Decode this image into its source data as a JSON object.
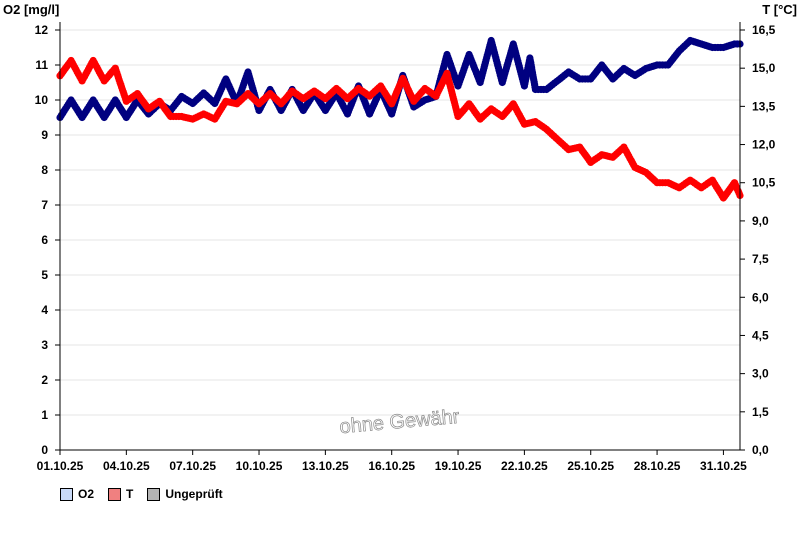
{
  "chart_data": {
    "type": "line",
    "left_axis": {
      "label": "O2 [mg/l]",
      "ylim": [
        0,
        12
      ],
      "ticks": [
        "0",
        "1",
        "2",
        "3",
        "4",
        "5",
        "6",
        "7",
        "8",
        "9",
        "10",
        "11",
        "12"
      ]
    },
    "right_axis": {
      "label": "T [°C]",
      "ylim": [
        0,
        16.5
      ],
      "ticks": [
        "0,0",
        "1,5",
        "3,0",
        "4,5",
        "6,0",
        "7,5",
        "9,0",
        "10,5",
        "12,0",
        "13,5",
        "15,0",
        "16,5"
      ]
    },
    "x_range": [
      "2025-10-01",
      "2025-10-31T18:00"
    ],
    "x_ticks": [
      "01.10.25",
      "04.10.25",
      "07.10.25",
      "10.10.25",
      "13.10.25",
      "16.10.25",
      "19.10.25",
      "22.10.25",
      "25.10.25",
      "28.10.25",
      "31.10.25"
    ],
    "grid": "horizontal",
    "watermark": "ohne Gewähr",
    "series": [
      {
        "name": "O2",
        "axis": "left",
        "color": "#000080",
        "legend_fill": "#c9daf8",
        "points": [
          [
            "2025-10-01",
            9.5
          ],
          [
            "2025-10-01T12:00",
            10.0
          ],
          [
            "2025-10-02",
            9.5
          ],
          [
            "2025-10-02T12:00",
            10.0
          ],
          [
            "2025-10-03",
            9.5
          ],
          [
            "2025-10-03T12:00",
            10.0
          ],
          [
            "2025-10-04",
            9.5
          ],
          [
            "2025-10-04T12:00",
            10.0
          ],
          [
            "2025-10-05",
            9.6
          ],
          [
            "2025-10-05T12:00",
            9.9
          ],
          [
            "2025-10-06",
            9.7
          ],
          [
            "2025-10-06T12:00",
            10.1
          ],
          [
            "2025-10-07",
            9.9
          ],
          [
            "2025-10-07T12:00",
            10.2
          ],
          [
            "2025-10-08",
            9.9
          ],
          [
            "2025-10-08T12:00",
            10.6
          ],
          [
            "2025-10-09",
            9.9
          ],
          [
            "2025-10-09T12:00",
            10.8
          ],
          [
            "2025-10-10",
            9.7
          ],
          [
            "2025-10-10T12:00",
            10.3
          ],
          [
            "2025-10-11",
            9.7
          ],
          [
            "2025-10-11T12:00",
            10.3
          ],
          [
            "2025-10-12",
            9.7
          ],
          [
            "2025-10-12T12:00",
            10.2
          ],
          [
            "2025-10-13",
            9.7
          ],
          [
            "2025-10-13T12:00",
            10.2
          ],
          [
            "2025-10-14",
            9.6
          ],
          [
            "2025-10-14T12:00",
            10.4
          ],
          [
            "2025-10-15",
            9.6
          ],
          [
            "2025-10-15T12:00",
            10.3
          ],
          [
            "2025-10-16",
            9.6
          ],
          [
            "2025-10-16T12:00",
            10.7
          ],
          [
            "2025-10-17",
            9.8
          ],
          [
            "2025-10-17T12:00",
            10.0
          ],
          [
            "2025-10-18",
            10.1
          ],
          [
            "2025-10-18T12:00",
            11.3
          ],
          [
            "2025-10-19",
            10.4
          ],
          [
            "2025-10-19T12:00",
            11.3
          ],
          [
            "2025-10-20",
            10.5
          ],
          [
            "2025-10-20T12:00",
            11.7
          ],
          [
            "2025-10-21",
            10.5
          ],
          [
            "2025-10-21T12:00",
            11.6
          ],
          [
            "2025-10-22",
            10.4
          ],
          [
            "2025-10-22T06:00",
            11.2
          ],
          [
            "2025-10-22T12:00",
            10.3
          ],
          [
            "2025-10-23",
            10.3
          ],
          [
            "2025-10-24",
            10.8
          ],
          [
            "2025-10-24T12:00",
            10.6
          ],
          [
            "2025-10-25",
            10.6
          ],
          [
            "2025-10-25T12:00",
            11.0
          ],
          [
            "2025-10-26",
            10.6
          ],
          [
            "2025-10-26T12:00",
            10.9
          ],
          [
            "2025-10-27",
            10.7
          ],
          [
            "2025-10-27T12:00",
            10.9
          ],
          [
            "2025-10-28",
            11.0
          ],
          [
            "2025-10-28T12:00",
            11.0
          ],
          [
            "2025-10-29",
            11.4
          ],
          [
            "2025-10-29T12:00",
            11.7
          ],
          [
            "2025-10-30",
            11.6
          ],
          [
            "2025-10-30T12:00",
            11.5
          ],
          [
            "2025-10-31",
            11.5
          ],
          [
            "2025-10-31T12:00",
            11.6
          ],
          [
            "2025-10-31T18:00",
            11.6
          ]
        ]
      },
      {
        "name": "T",
        "axis": "right",
        "color": "#ff0000",
        "legend_fill": "#f08080",
        "points": [
          [
            "2025-10-01",
            14.7
          ],
          [
            "2025-10-01T12:00",
            15.3
          ],
          [
            "2025-10-02",
            14.5
          ],
          [
            "2025-10-02T12:00",
            15.3
          ],
          [
            "2025-10-03",
            14.5
          ],
          [
            "2025-10-03T12:00",
            15.0
          ],
          [
            "2025-10-04",
            13.7
          ],
          [
            "2025-10-04T12:00",
            14.0
          ],
          [
            "2025-10-05",
            13.4
          ],
          [
            "2025-10-05T12:00",
            13.7
          ],
          [
            "2025-10-06",
            13.1
          ],
          [
            "2025-10-06T12:00",
            13.1
          ],
          [
            "2025-10-07",
            13.0
          ],
          [
            "2025-10-07T12:00",
            13.2
          ],
          [
            "2025-10-08",
            13.0
          ],
          [
            "2025-10-08T12:00",
            13.7
          ],
          [
            "2025-10-09",
            13.6
          ],
          [
            "2025-10-09T12:00",
            14.0
          ],
          [
            "2025-10-10",
            13.6
          ],
          [
            "2025-10-10T12:00",
            14.0
          ],
          [
            "2025-10-11",
            13.6
          ],
          [
            "2025-10-11T12:00",
            14.1
          ],
          [
            "2025-10-12",
            13.8
          ],
          [
            "2025-10-12T12:00",
            14.1
          ],
          [
            "2025-10-13",
            13.8
          ],
          [
            "2025-10-13T12:00",
            14.2
          ],
          [
            "2025-10-14",
            13.8
          ],
          [
            "2025-10-14T12:00",
            14.2
          ],
          [
            "2025-10-15",
            13.9
          ],
          [
            "2025-10-15T12:00",
            14.3
          ],
          [
            "2025-10-16",
            13.6
          ],
          [
            "2025-10-16T12:00",
            14.6
          ],
          [
            "2025-10-17",
            13.7
          ],
          [
            "2025-10-17T12:00",
            14.2
          ],
          [
            "2025-10-18",
            13.9
          ],
          [
            "2025-10-18T12:00",
            14.8
          ],
          [
            "2025-10-19",
            13.1
          ],
          [
            "2025-10-19T12:00",
            13.6
          ],
          [
            "2025-10-20",
            13.0
          ],
          [
            "2025-10-20T12:00",
            13.4
          ],
          [
            "2025-10-21",
            13.1
          ],
          [
            "2025-10-21T12:00",
            13.6
          ],
          [
            "2025-10-22",
            12.8
          ],
          [
            "2025-10-22T12:00",
            12.9
          ],
          [
            "2025-10-23",
            12.6
          ],
          [
            "2025-10-24",
            11.8
          ],
          [
            "2025-10-24T12:00",
            11.9
          ],
          [
            "2025-10-25",
            11.3
          ],
          [
            "2025-10-25T12:00",
            11.6
          ],
          [
            "2025-10-26",
            11.5
          ],
          [
            "2025-10-26T12:00",
            11.9
          ],
          [
            "2025-10-27",
            11.1
          ],
          [
            "2025-10-27T12:00",
            10.9
          ],
          [
            "2025-10-28",
            10.5
          ],
          [
            "2025-10-28T12:00",
            10.5
          ],
          [
            "2025-10-29",
            10.3
          ],
          [
            "2025-10-29T12:00",
            10.6
          ],
          [
            "2025-10-30",
            10.3
          ],
          [
            "2025-10-30T12:00",
            10.6
          ],
          [
            "2025-10-31",
            9.9
          ],
          [
            "2025-10-31T12:00",
            10.5
          ],
          [
            "2025-10-31T18:00",
            10.0
          ]
        ]
      }
    ]
  },
  "legend": {
    "items": [
      {
        "label": "O2",
        "color": "#c9daf8"
      },
      {
        "label": "T",
        "color": "#f08080"
      },
      {
        "label": "Ungeprüft",
        "color": "#b4b4b4"
      }
    ]
  }
}
